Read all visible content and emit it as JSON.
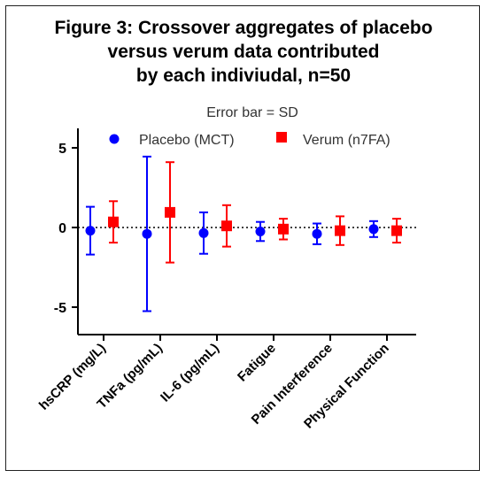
{
  "title_lines": [
    "Figure 3: Crossover aggregates of placebo",
    "versus verum data contributed",
    "by each indiviudal, n=50"
  ],
  "chart_data": {
    "type": "scatter",
    "subtitle": "Error bar = SD",
    "categories": [
      "hsCRP (mg/L)",
      "TNFa (pg/mL)",
      "IL-6 (pg/mL)",
      "Fatigue",
      "Pain Interference",
      "Physical Function"
    ],
    "ylim": [
      -7,
      7
    ],
    "yticks": [
      5,
      0,
      -5
    ],
    "ytick_labels": [
      "5",
      "0",
      "-5"
    ],
    "reference_line": 0,
    "legend_placement": "top",
    "series": [
      {
        "name": "Placebo (MCT)",
        "color": "#0000ff",
        "marker": "circle",
        "values": [
          -0.2,
          -0.4,
          -0.35,
          -0.25,
          -0.4,
          -0.1
        ],
        "sd": [
          1.5,
          4.85,
          1.3,
          0.6,
          0.65,
          0.5
        ]
      },
      {
        "name": "Verum (n7FA)",
        "color": "#ff0000",
        "marker": "square",
        "values": [
          0.35,
          0.95,
          0.1,
          -0.1,
          -0.2,
          -0.2
        ],
        "sd": [
          1.3,
          3.15,
          1.3,
          0.65,
          0.9,
          0.75
        ]
      }
    ]
  }
}
